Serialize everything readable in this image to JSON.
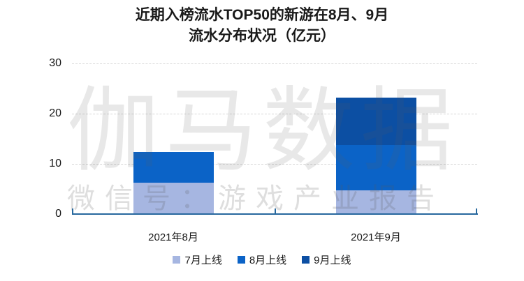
{
  "title": {
    "line1": "近期入榜流水TOP50的新游在8月、9月",
    "line2": "流水分布状况（亿元）"
  },
  "watermark": {
    "line1": "伽马数据",
    "line2": "微信号：游戏产业报告"
  },
  "chart_data": {
    "type": "bar",
    "stacked": true,
    "title": "近期入榜流水TOP50的新游在8月、9月流水分布状况（亿元）",
    "categories": [
      "2021年8月",
      "2021年9月"
    ],
    "series": [
      {
        "name": "7月上线",
        "color": "#A6B6E1",
        "values": [
          6.3,
          4.7
        ]
      },
      {
        "name": "8月上线",
        "color": "#0B63C7",
        "values": [
          6.1,
          9.0
        ]
      },
      {
        "name": "9月上线",
        "color": "#0C4FA3",
        "values": [
          0,
          9.5
        ]
      }
    ],
    "totals": [
      12.4,
      23.2
    ],
    "ylim": [
      0,
      30
    ],
    "yticks": [
      0,
      10,
      20,
      30
    ],
    "grid": "horizontal-dashed",
    "legend_position": "bottom",
    "colors": {
      "axis": "#27689E",
      "gridline": "#D6D6D6",
      "text": "#1A1A1A"
    }
  }
}
